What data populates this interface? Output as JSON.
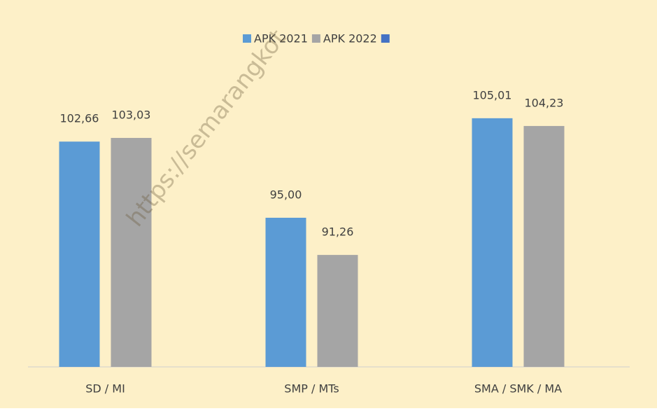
{
  "chart_data": {
    "type": "bar",
    "categories": [
      "SD / MI",
      "SMP / MTs",
      "SMA / SMK / MA"
    ],
    "series": [
      {
        "name": "APK 2021",
        "color": "#5b9bd5",
        "values": [
          102.66,
          95.0,
          105.01
        ],
        "value_labels": [
          "102,66",
          "95,00",
          "105,01"
        ]
      },
      {
        "name": "APK 2022",
        "color": "#a5a5a5",
        "values": [
          103.03,
          91.26,
          104.23
        ],
        "value_labels": [
          "103,03",
          "91,26",
          "104,23"
        ]
      },
      {
        "name": null,
        "color": "#4472c4",
        "values": [
          null,
          null,
          null
        ]
      }
    ],
    "ylim": [
      80,
      110
    ],
    "watermark": "https://semarangkot"
  }
}
